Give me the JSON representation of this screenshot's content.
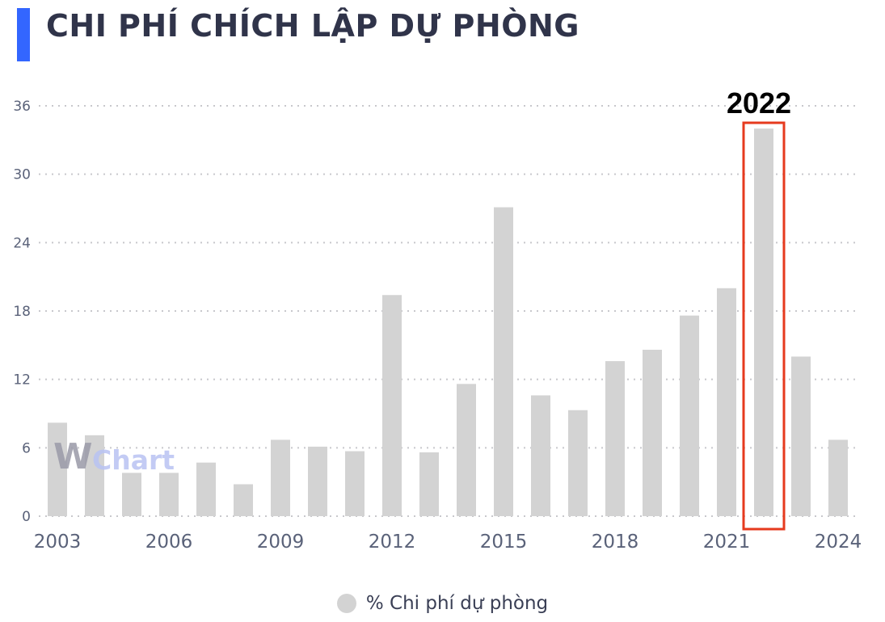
{
  "title": "CHI PHÍ CHÍCH LẬP DỰ PHÒNG",
  "colors": {
    "accent": "#3366ff",
    "bar": "#d3d3d3",
    "highlight": "#e63a1e",
    "title": "#30344a",
    "axis_text": "#5a6279"
  },
  "watermark": {
    "w": "W",
    "text": "Chart",
    "icon": "wichart-logo"
  },
  "legend": {
    "label": "% Chi phí dự phòng"
  },
  "highlight": {
    "label": "2022",
    "category": "2022"
  },
  "chart_data": {
    "type": "bar",
    "categories": [
      "2003",
      "2004",
      "2005",
      "2006",
      "2007",
      "2008",
      "2009",
      "2010",
      "2011",
      "2012",
      "2013",
      "2014",
      "2015",
      "2016",
      "2017",
      "2018",
      "2019",
      "2020",
      "2021",
      "2022",
      "2023",
      "2024"
    ],
    "x_tick_labels": [
      "2003",
      "2006",
      "2009",
      "2012",
      "2015",
      "2018",
      "2021",
      "2024"
    ],
    "series": [
      {
        "name": "% Chi phí dự phòng",
        "values": [
          8.2,
          7.1,
          3.8,
          3.8,
          4.7,
          2.8,
          6.7,
          6.1,
          5.7,
          19.4,
          5.6,
          11.6,
          27.1,
          10.6,
          9.3,
          13.6,
          14.6,
          17.6,
          20.0,
          34.0,
          14.0,
          6.7
        ]
      }
    ],
    "yticks": [
      0,
      6,
      12,
      18,
      24,
      30,
      36
    ],
    "ylim": [
      0,
      36
    ],
    "grid": true,
    "legend_position": "bottom-center"
  }
}
